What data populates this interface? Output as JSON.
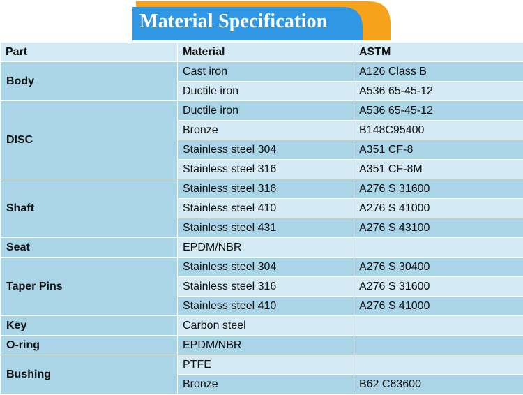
{
  "title": "Material Specification",
  "colors": {
    "banner_blue": "#2f97e3",
    "banner_orange": "#f7a21b",
    "row_light": "#d3e9f3",
    "row_dark": "#a9d5e7"
  },
  "headers": [
    "Part",
    "Material",
    "ASTM"
  ],
  "parts": [
    {
      "name": "Body",
      "rows": [
        {
          "material": "Cast iron",
          "astm": "A126 Class B"
        },
        {
          "material": "Ductile iron",
          "astm": "A536 65-45-12"
        }
      ]
    },
    {
      "name": "DISC",
      "rows": [
        {
          "material": "Ductile iron",
          "astm": "A536 65-45-12"
        },
        {
          "material": "Bronze",
          "astm": "B148C95400"
        },
        {
          "material": "Stainless steel 304",
          "astm": "A351 CF-8"
        },
        {
          "material": "Stainless steel 316",
          "astm": "A351 CF-8M"
        }
      ]
    },
    {
      "name": "Shaft",
      "rows": [
        {
          "material": "Stainless steel 316",
          "astm": "A276 S 31600"
        },
        {
          "material": "Stainless steel 410",
          "astm": "A276 S 41000"
        },
        {
          "material": "Stainless steel 431",
          "astm": "A276 S 43100"
        }
      ]
    },
    {
      "name": "Seat",
      "rows": [
        {
          "material": "EPDM/NBR",
          "astm": ""
        }
      ]
    },
    {
      "name": "Taper Pins",
      "rows": [
        {
          "material": "Stainless steel 304",
          "astm": "A276 S 30400"
        },
        {
          "material": "Stainless steel 316",
          "astm": "A276 S 31600"
        },
        {
          "material": "Stainless steel 410",
          "astm": "A276 S 41000"
        }
      ]
    },
    {
      "name": "Key",
      "rows": [
        {
          "material": "Carbon steel",
          "astm": ""
        }
      ]
    },
    {
      "name": "O-ring",
      "rows": [
        {
          "material": "EPDM/NBR",
          "astm": ""
        }
      ]
    },
    {
      "name": "Bushing",
      "rows": [
        {
          "material": "PTFE",
          "astm": ""
        },
        {
          "material": "Bronze",
          "astm": "B62 C83600"
        }
      ]
    }
  ]
}
